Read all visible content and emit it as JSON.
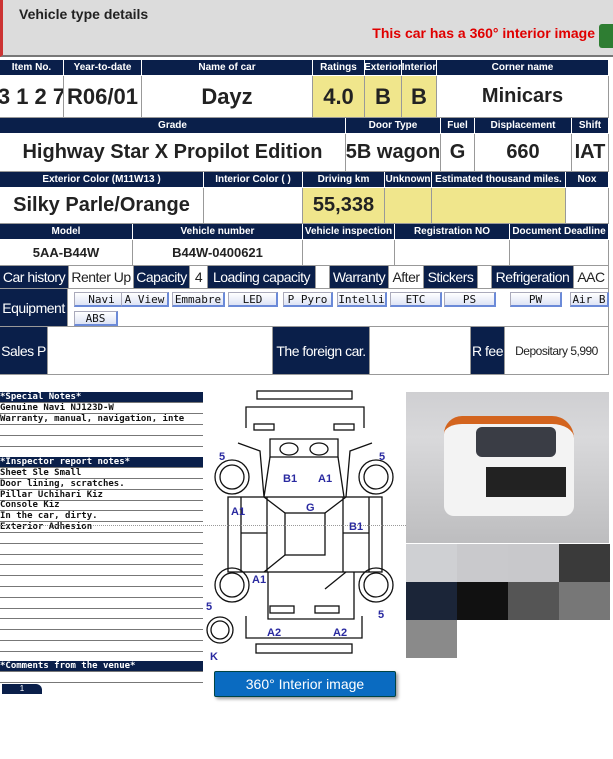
{
  "header": {
    "title": "Vehicle type details",
    "notice": "This car has a 360° interior image",
    "notice_color": "#e00000"
  },
  "row1": {
    "labels": [
      "Item No.",
      "Year-to-date",
      "Name of car",
      "Ratings",
      "Exterior",
      "Interior",
      "Corner name"
    ],
    "values": [
      "3 1 2 7",
      "R06/01",
      "Dayz",
      "4.0",
      "B",
      "B",
      "Minicars"
    ]
  },
  "row2": {
    "labels": [
      "Grade",
      "Door Type",
      "Fuel",
      "Displacement",
      "Shift"
    ],
    "values": [
      "Highway Star X Propilot Edition",
      "5B wagon",
      "G",
      "660",
      "IAT"
    ]
  },
  "row3": {
    "labels": [
      "Exterior Color (M11W13 )",
      "Interior Color ( )",
      "Driving km",
      "Unknown",
      "Estimated thousand miles.",
      "Nox"
    ],
    "values": [
      "Silky Parle/Orange",
      "",
      "55,338",
      "",
      "",
      ""
    ]
  },
  "row4": {
    "labels": [
      "Model",
      "Vehicle number",
      "Vehicle inspection",
      "Registration NO",
      "Document Deadline"
    ],
    "values": [
      "5AA-B44W",
      "B44W-0400621",
      "",
      "",
      ""
    ]
  },
  "row5": {
    "car_history_label": "Car history",
    "car_history": "Renter Up",
    "capacity_label": "Capacity",
    "capacity": "4",
    "loading_label": "Loading capacity",
    "loading": "",
    "warranty_label": "Warranty",
    "warranty": "After",
    "stickers_label": "Stickers",
    "stickers": "",
    "refrigeration_label": "Refrigeration",
    "refrigeration": "AAC"
  },
  "equipment": {
    "label": "Equipment",
    "items": [
      "Navi",
      "A View",
      "Emmabre",
      "LED",
      "P Pyro",
      "Intelli",
      "ETC",
      "PS",
      "PW",
      "Air B",
      "ABS"
    ]
  },
  "sales": {
    "sales_label": "Sales P",
    "sales": "",
    "foreign_label": "The foreign car.",
    "foreign": "",
    "rfee_label": "R fee",
    "rfee": "Depositary 5,990"
  },
  "notes": {
    "special_header": "*Special Notes*",
    "special": [
      "Genuine Navi NJ123D-W",
      "Warranty, manual, navigation, inte"
    ],
    "inspector_header": "*Inspector report notes*",
    "inspector": [
      "Sheet Sle Small",
      "Door lining, scratches.",
      "Pillar Uchihari Kiz",
      "Console Kiz",
      "In the car, dirty.",
      "Exterior Adhesion"
    ],
    "comments_header": "*Comments from the venue*",
    "comments": "",
    "page": "1"
  },
  "diagram": {
    "marks": [
      "5",
      "5",
      "B1",
      "A1",
      "G",
      "A1",
      "B1",
      "A1",
      "5",
      "5",
      "A2",
      "A2",
      "K"
    ]
  },
  "interior_button": "360° Interior image"
}
